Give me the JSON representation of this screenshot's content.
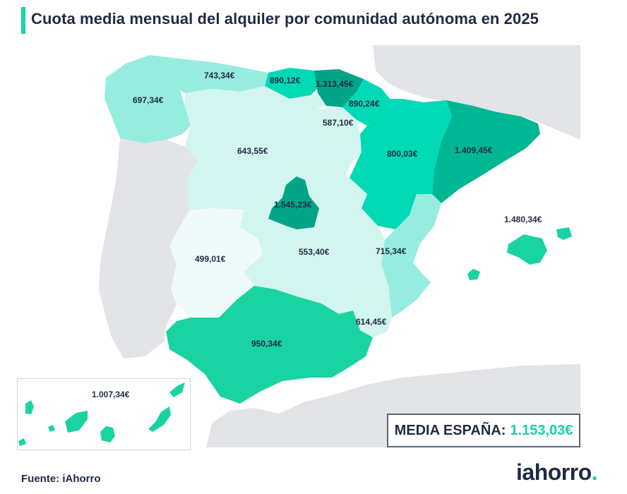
{
  "title": "Cuota media mensual del alquiler por comunidad autónoma en 2025",
  "colors": {
    "accent": "#19d3a2",
    "text": "#1f2a44",
    "land_other": "#e2e4e8",
    "scale": [
      "#f0fbf9",
      "#d3f5ef",
      "#97ece0",
      "#00d9b5",
      "#00b794",
      "#00a486"
    ]
  },
  "regions": [
    {
      "name": "Galicia",
      "value": "697,34€"
    },
    {
      "name": "Asturias",
      "value": "743,34€"
    },
    {
      "name": "Cantabria",
      "value": "890,12€"
    },
    {
      "name": "País Vasco",
      "value": "1.313,45€"
    },
    {
      "name": "Navarra",
      "value": "890,24€"
    },
    {
      "name": "La Rioja",
      "value": "587,10€"
    },
    {
      "name": "Castilla y León",
      "value": "643,55€"
    },
    {
      "name": "Aragón",
      "value": "800,03€"
    },
    {
      "name": "Cataluña",
      "value": "1.409,45€"
    },
    {
      "name": "Madrid",
      "value": "1.545,23€"
    },
    {
      "name": "Extremadura",
      "value": "499,01€"
    },
    {
      "name": "Castilla-La Mancha",
      "value": "553,40€"
    },
    {
      "name": "Comunidad Valenciana",
      "value": "715,34€"
    },
    {
      "name": "Región de Murcia",
      "value": "614,45€"
    },
    {
      "name": "Andalucía",
      "value": "950,34€"
    },
    {
      "name": "Islas Baleares",
      "value": "1.480,34€"
    },
    {
      "name": "Canarias",
      "value": "1.007,34€"
    }
  ],
  "media": {
    "label": "MEDIA ESPAÑA:",
    "value": "1.153,03€"
  },
  "source": "Fuente: iAhorro",
  "logo": {
    "main": "iahorro",
    "dot": "."
  }
}
